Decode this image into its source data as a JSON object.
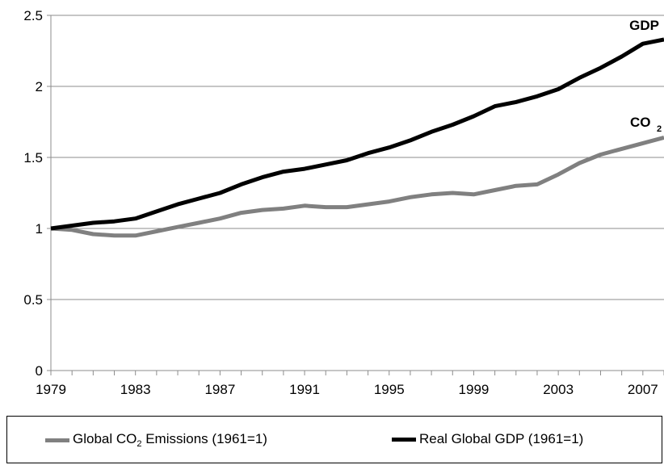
{
  "chart_data": {
    "type": "line",
    "x": [
      1979,
      1980,
      1981,
      1982,
      1983,
      1984,
      1985,
      1986,
      1987,
      1988,
      1989,
      1990,
      1991,
      1992,
      1993,
      1994,
      1995,
      1996,
      1997,
      1998,
      1999,
      2000,
      2001,
      2002,
      2003,
      2004,
      2005,
      2006,
      2007,
      2008
    ],
    "xticks": [
      1979,
      1983,
      1987,
      1991,
      1995,
      1999,
      2003,
      2007
    ],
    "xlim": [
      1979,
      2008
    ],
    "yticks": [
      "0",
      "0.5",
      "1",
      "1.5",
      "2",
      "2.5"
    ],
    "ylim": [
      0,
      2.5
    ],
    "grid": true,
    "legend_position": "bottom",
    "series": [
      {
        "key": "co2",
        "name": "Global CO",
        "name_sub": "2",
        "name_rest": " Emissions (1961=1)",
        "label": "CO",
        "label_sub": "2",
        "color": "#808080",
        "values": [
          1.0,
          0.99,
          0.96,
          0.95,
          0.95,
          0.98,
          1.01,
          1.04,
          1.07,
          1.11,
          1.13,
          1.14,
          1.16,
          1.15,
          1.15,
          1.17,
          1.19,
          1.22,
          1.24,
          1.25,
          1.24,
          1.27,
          1.3,
          1.31,
          1.38,
          1.46,
          1.52,
          1.56,
          1.6,
          1.64
        ]
      },
      {
        "key": "gdp",
        "name": "Real Global GDP (1961=1)",
        "label": "GDP",
        "color": "#000000",
        "values": [
          1.0,
          1.02,
          1.04,
          1.05,
          1.07,
          1.12,
          1.17,
          1.21,
          1.25,
          1.31,
          1.36,
          1.4,
          1.42,
          1.45,
          1.48,
          1.53,
          1.57,
          1.62,
          1.68,
          1.73,
          1.79,
          1.86,
          1.89,
          1.93,
          1.98,
          2.06,
          2.13,
          2.21,
          2.3,
          2.33
        ]
      }
    ]
  }
}
